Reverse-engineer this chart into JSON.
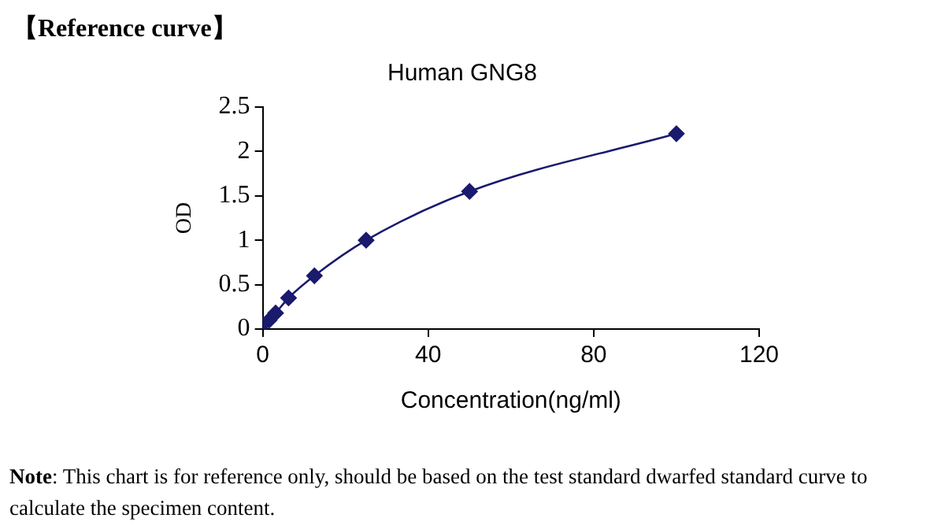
{
  "chart_data": {
    "type": "line",
    "title": "Human GNG8",
    "xlabel": "Concentration(ng/ml)",
    "ylabel": "OD",
    "annotations": [
      "【Reference curve】",
      "Note: This chart is for reference only, should be based on the test standard dwarfed standard curve to calculate the specimen content."
    ],
    "series": [
      {
        "color": "#1a1a6e",
        "x": [
          0,
          1.56,
          3.12,
          6.25,
          12.5,
          25,
          50,
          100
        ],
        "values": [
          0.05,
          0.1,
          0.18,
          0.35,
          0.6,
          1.0,
          1.55,
          2.2
        ]
      }
    ],
    "xlim": [
      0,
      120
    ],
    "xticks": [
      0,
      40,
      80,
      120
    ],
    "ylim": [
      0,
      2.5
    ],
    "yticks": [
      0,
      0.5,
      1,
      1.5,
      2,
      2.5
    ],
    "grid": false,
    "legend": false,
    "marker": "diamond",
    "line_style": "solid"
  }
}
